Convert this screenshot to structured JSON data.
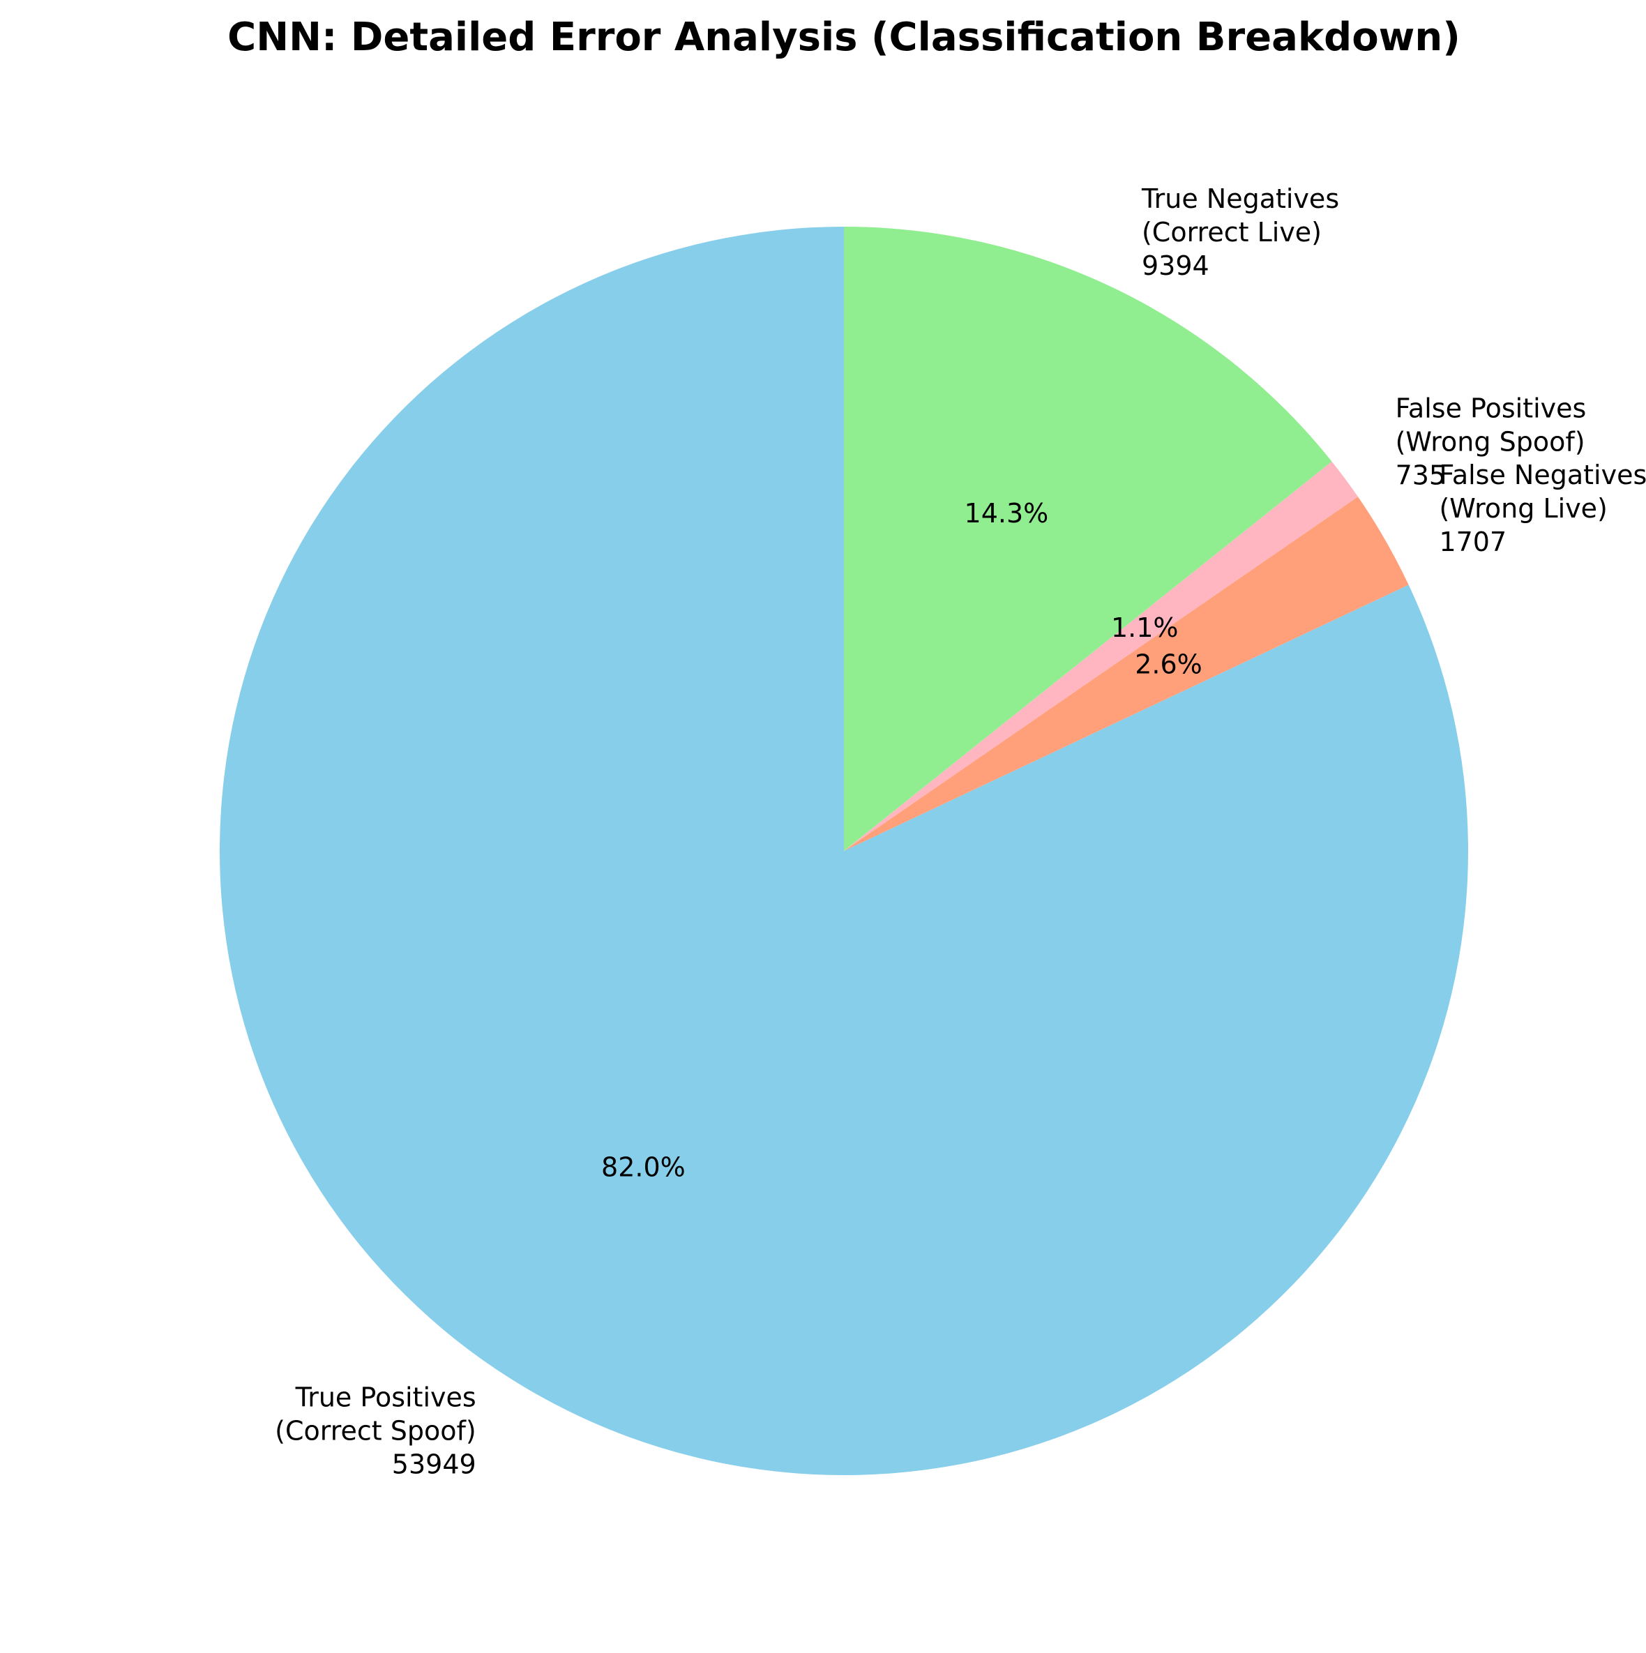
{
  "chart_data": {
    "type": "pie",
    "title": "CNN: Detailed Error Analysis (Classification Breakdown)",
    "start_angle_deg": 90,
    "direction": "counterclockwise",
    "slices": [
      {
        "name": "True Positives",
        "sub": "(Correct Spoof)",
        "value": 53949,
        "pct": "82.0%",
        "color": "#87CEEB"
      },
      {
        "name": "False Negatives",
        "sub": "(Wrong Live)",
        "value": 1707,
        "pct": "2.6%",
        "color": "#FFA07A"
      },
      {
        "name": "False Positives",
        "sub": "(Wrong Spoof)",
        "value": 735,
        "pct": "1.1%",
        "color": "#FFB6C1"
      },
      {
        "name": "True Negatives",
        "sub": "(Correct Live)",
        "value": 9394,
        "pct": "14.3%",
        "color": "#90EE90"
      }
    ]
  }
}
